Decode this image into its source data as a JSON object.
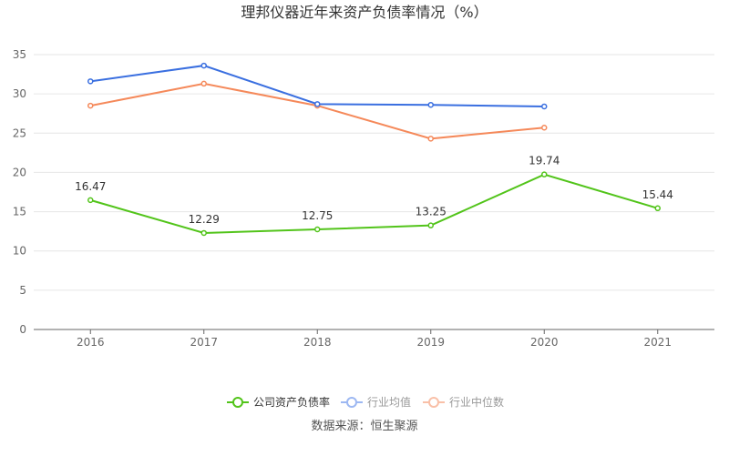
{
  "chart_data": {
    "type": "line",
    "title": "理邦仪器近年来资产负债率情况（%）",
    "categories": [
      "2016",
      "2017",
      "2018",
      "2019",
      "2020",
      "2021"
    ],
    "ylim": [
      0,
      35
    ],
    "yticks": [
      0,
      5,
      10,
      15,
      20,
      25,
      30,
      35
    ],
    "grid": true,
    "legend_position": "bottom",
    "series": [
      {
        "name": "公司资产负债率",
        "color": "#52c41a",
        "values": [
          16.47,
          12.29,
          12.75,
          13.25,
          19.74,
          15.44
        ],
        "labels": [
          "16.47",
          "12.29",
          "12.75",
          "13.25",
          "19.74",
          "15.44"
        ]
      },
      {
        "name": "行业均值",
        "color": "#3a6fe0",
        "values": [
          31.6,
          33.6,
          28.7,
          28.6,
          28.4,
          null
        ]
      },
      {
        "name": "行业中位数",
        "color": "#f5895a",
        "values": [
          28.5,
          31.3,
          28.5,
          24.3,
          25.7,
          null
        ]
      }
    ],
    "source": "数据来源：恒生聚源"
  }
}
